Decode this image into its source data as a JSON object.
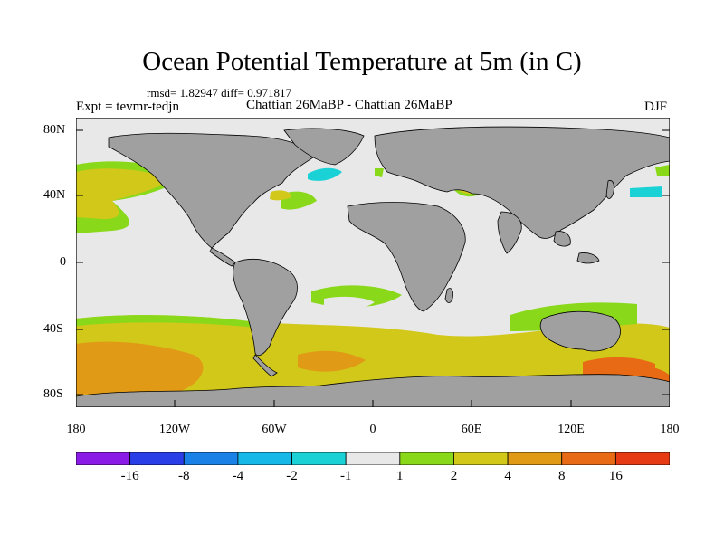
{
  "title": "Ocean Potential Temperature at 5m (in C)",
  "stats_line": "rmsd= 1.82947 diff= 0.971817",
  "experiment": "Expt = tevmr-tedjn",
  "subtitle": "Chattian  26MaBP - Chattian  26MaBP",
  "season": "DJF",
  "lat_labels": [
    "80N",
    "40N",
    "0",
    "40S",
    "80S"
  ],
  "lon_labels": [
    "180",
    "120W",
    "60W",
    "0",
    "60E",
    "120E",
    "180"
  ],
  "colorbar": {
    "labels": [
      "-16",
      "-8",
      "-4",
      "-2",
      "-1",
      "1",
      "2",
      "4",
      "8",
      "16"
    ],
    "colors": [
      "#8a1ae6",
      "#2a3ee8",
      "#1a82e6",
      "#16b8e8",
      "#1ad2d6",
      "#e8e8e8",
      "#8ad81a",
      "#d2c81a",
      "#e09a16",
      "#e86a14",
      "#e63a14"
    ]
  },
  "palette": {
    "land": "#a0a0a0",
    "ocean_neutral": "#e8e8e8"
  }
}
